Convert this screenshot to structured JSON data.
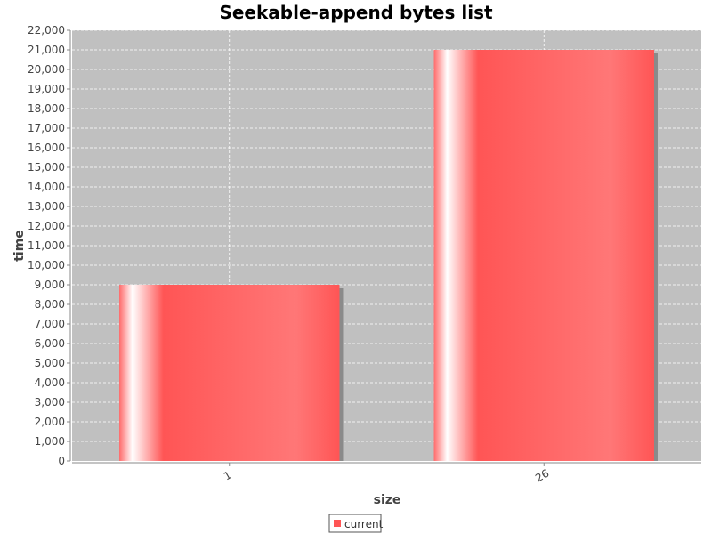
{
  "chart_data": {
    "type": "bar",
    "title": "Seekable-append bytes list",
    "xlabel": "size",
    "ylabel": "time",
    "categories": [
      "1",
      "26"
    ],
    "series": [
      {
        "name": "current",
        "values": [
          9000,
          21000
        ]
      }
    ],
    "ylim": [
      0,
      22000
    ],
    "ytick_step": 1000,
    "grid": true,
    "legend_placement": "bottom-center",
    "colors": {
      "plot_background": "#c0c0c0",
      "grid": "#ffffff",
      "bar": "#ff5555",
      "bar_highlight": "#ffffff",
      "shadow": "#8a8a8a",
      "legend_swatch": "#ff5555"
    }
  }
}
